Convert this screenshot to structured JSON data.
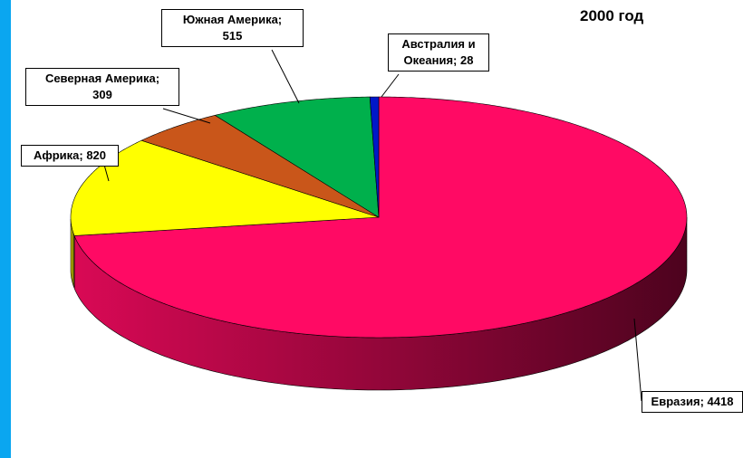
{
  "chart_data": {
    "type": "pie",
    "title": "2000 год",
    "categories": [
      "Евразия",
      "Африка",
      "Северная Америка",
      "Южная Америка",
      "Австралия и Океания"
    ],
    "values": [
      4418,
      820,
      309,
      515,
      28
    ],
    "value_labels": [
      "Евразия; 4418",
      "Африка; 820",
      "Северная Америка;\n309",
      "Южная Америка;\n515",
      "Австралия и\nОкеания; 28"
    ],
    "colors": [
      "#ff0a64",
      "#ffff00",
      "#c9561a",
      "#00b04c",
      "#0018c8"
    ]
  }
}
